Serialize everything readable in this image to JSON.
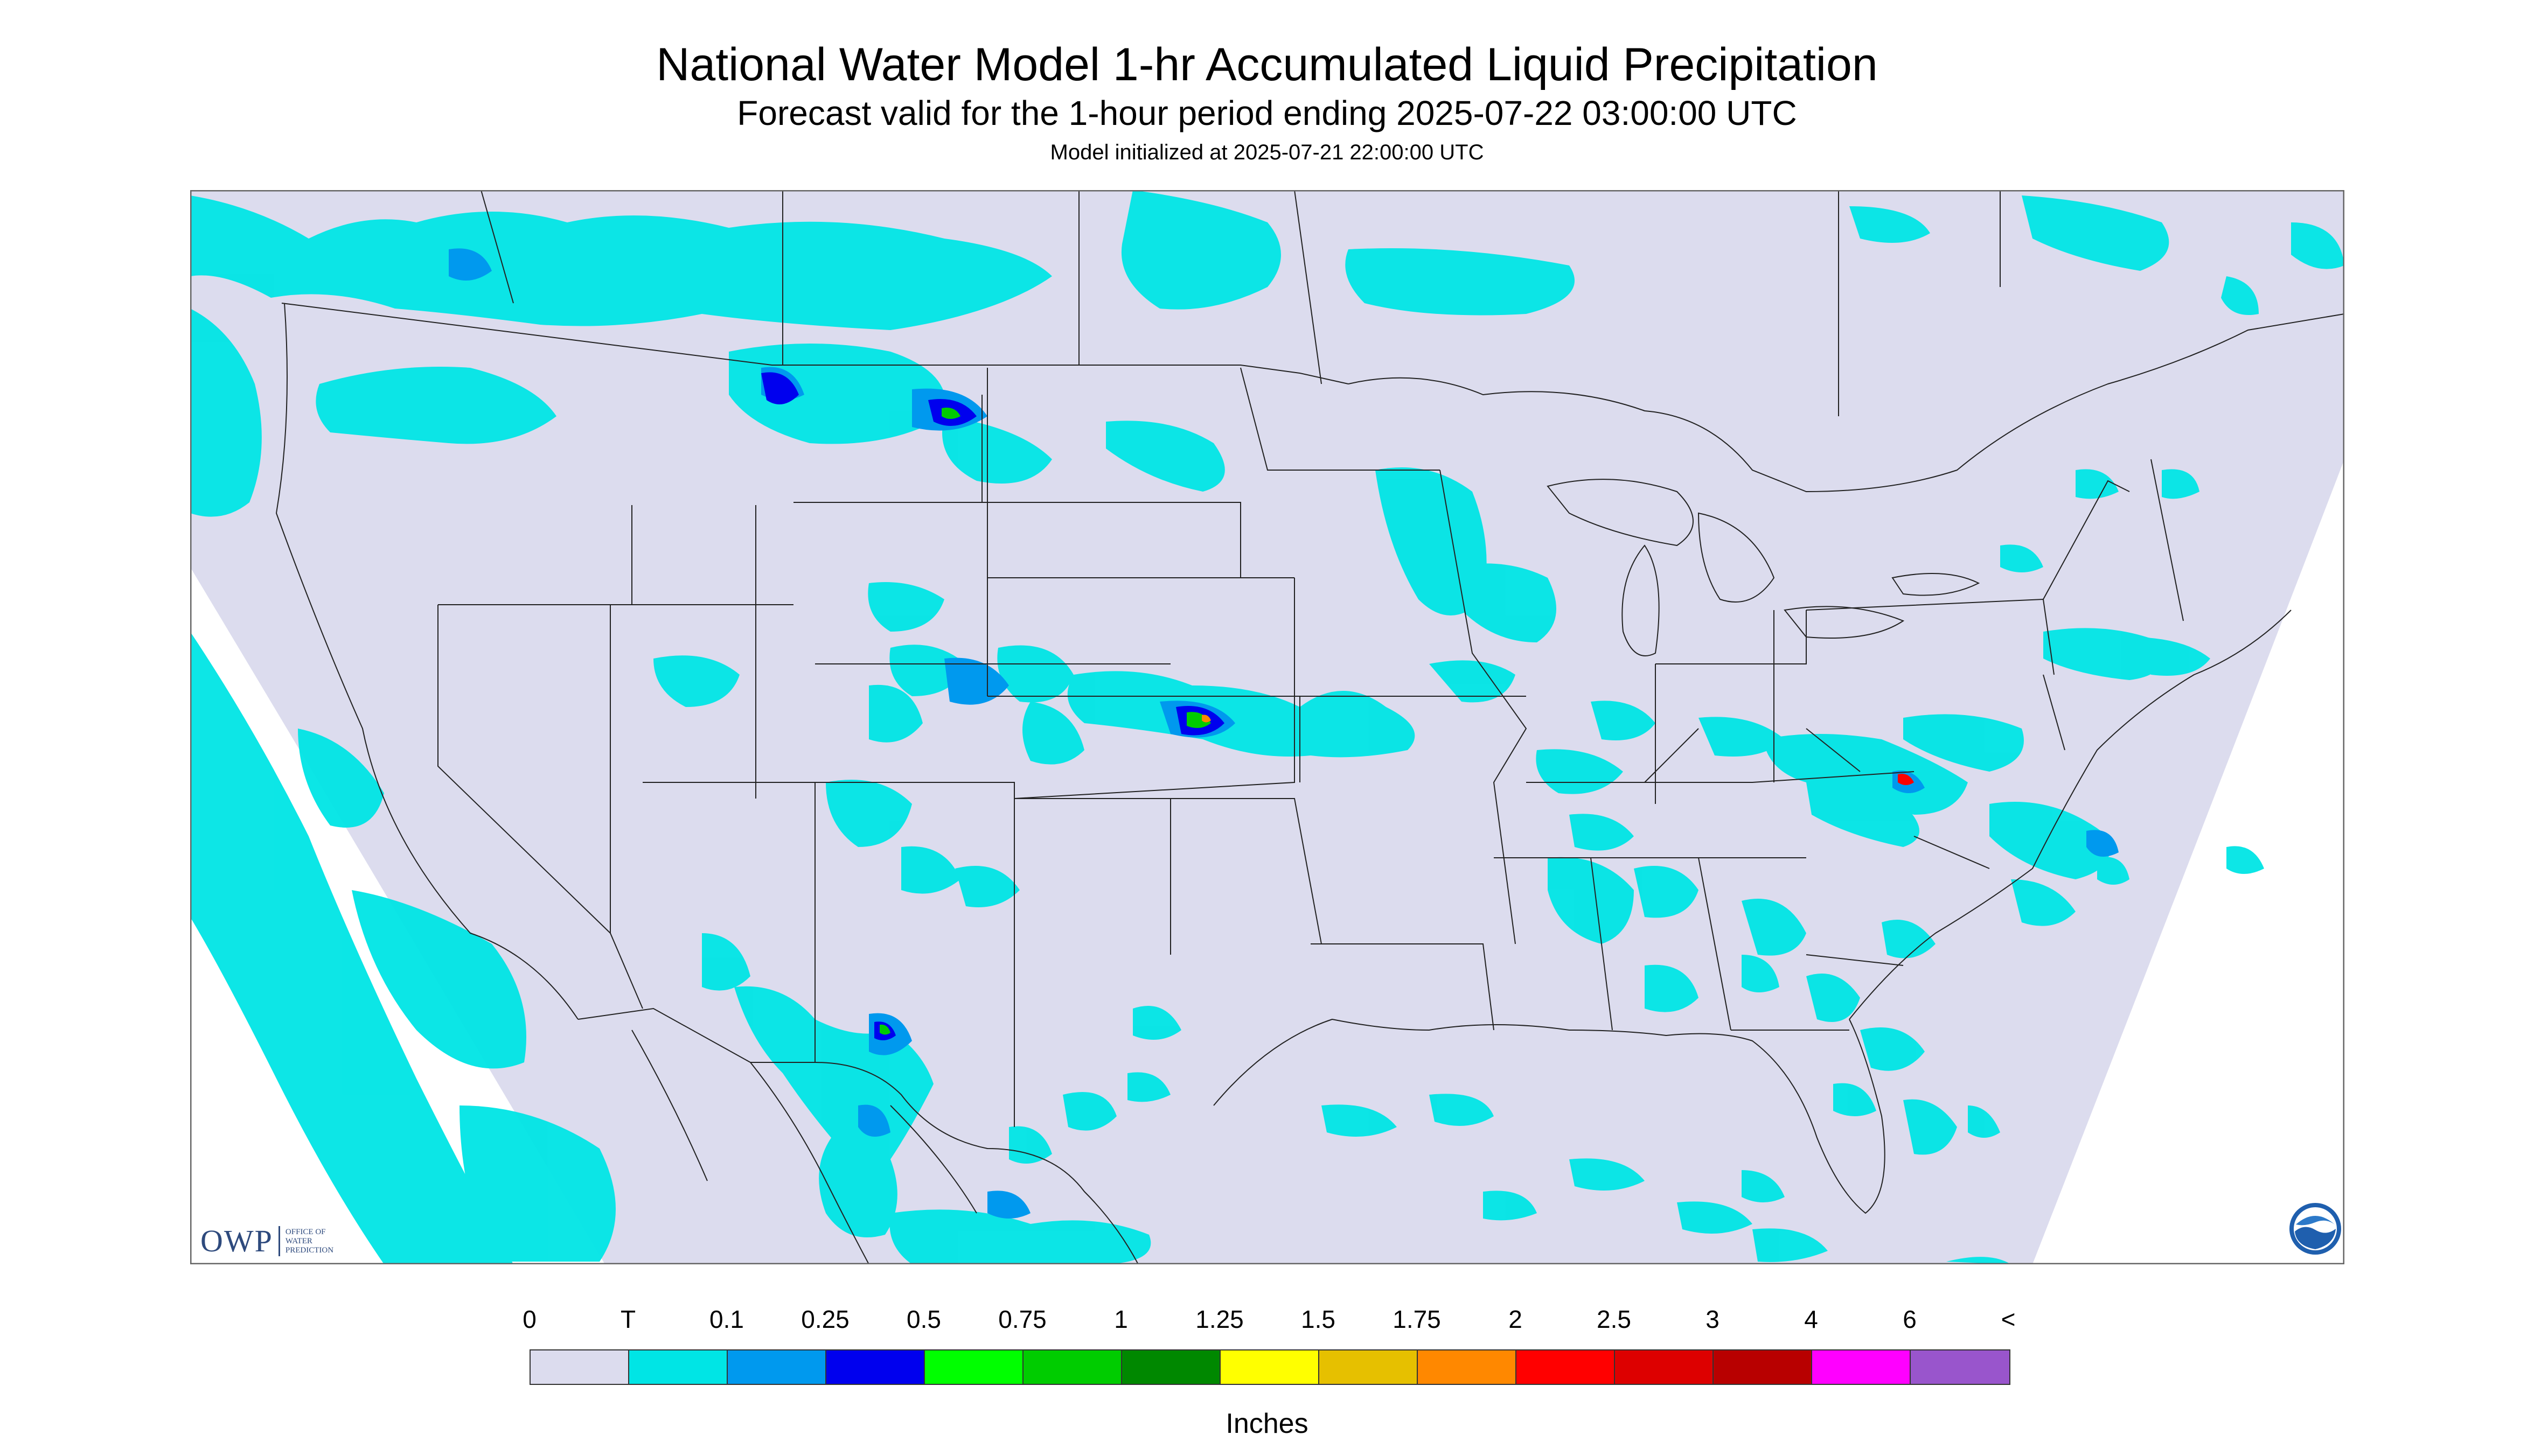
{
  "header": {
    "title": "National Water Model 1-hr Accumulated Liquid Precipitation",
    "subtitle": "Forecast valid for the 1-hour period ending 2025-07-22 03:00:00 UTC",
    "init": "Model initialized at 2025-07-21 22:00:00 UTC"
  },
  "map": {
    "background_color": "#dcdcee",
    "border_color": "#666666",
    "line_color": "#222222"
  },
  "logos": {
    "owp_main": "OWP",
    "owp_small": [
      "OFFICE OF",
      "WATER",
      "PREDICTION"
    ],
    "noaa_icon": "noaa-icon"
  },
  "legend": {
    "labels": [
      "0",
      "T",
      "0.1",
      "0.25",
      "0.5",
      "0.75",
      "1",
      "1.25",
      "1.5",
      "1.75",
      "2",
      "2.5",
      "3",
      "4",
      "6",
      "<"
    ],
    "colors": [
      "#dcdcee",
      "#00e5e5",
      "#0099ee",
      "#0000ee",
      "#00ff00",
      "#00cc00",
      "#008800",
      "#ffff00",
      "#e6c000",
      "#ff8800",
      "#ff0000",
      "#dd0000",
      "#b80000",
      "#ff00ff",
      "#9955cc"
    ],
    "units": "Inches"
  }
}
